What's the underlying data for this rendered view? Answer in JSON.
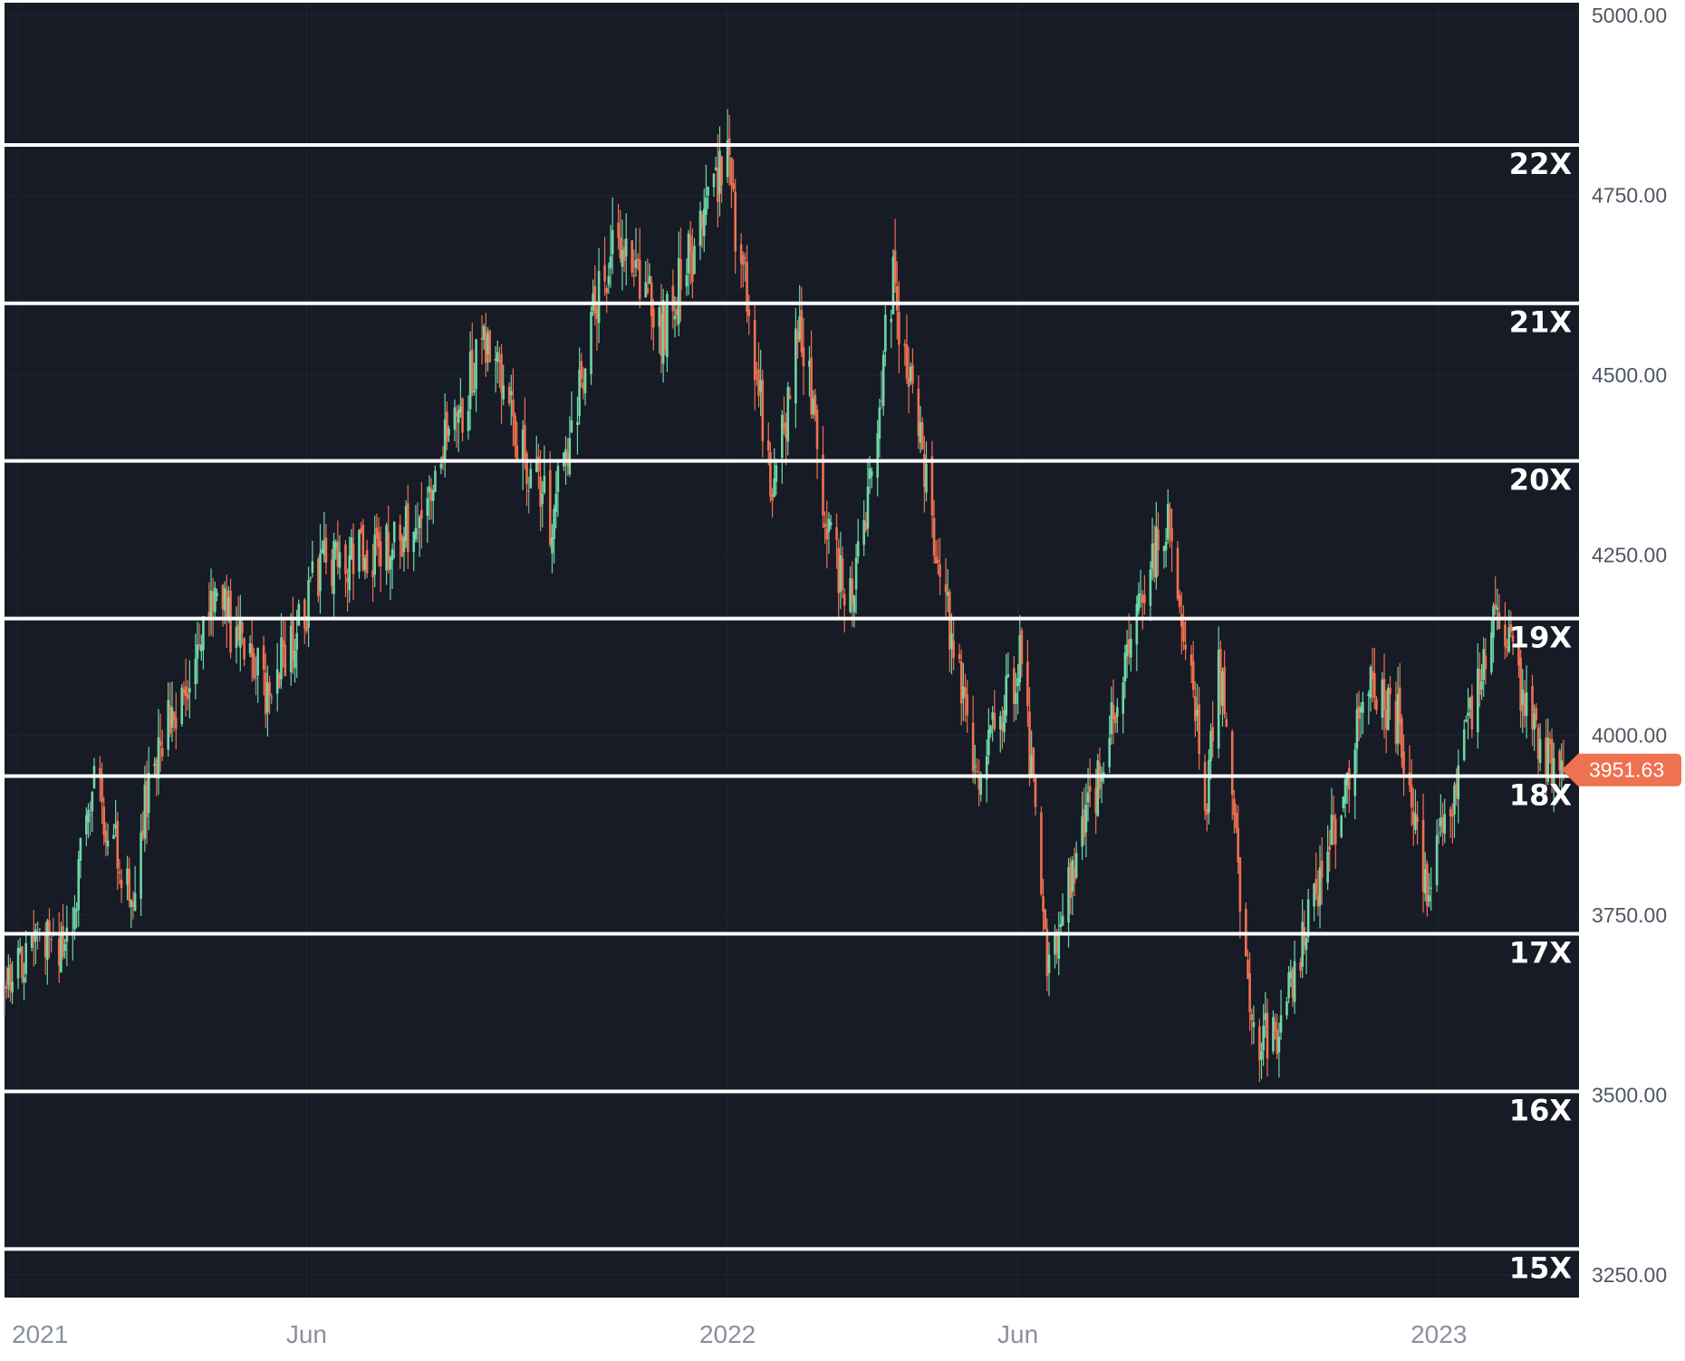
{
  "colors": {
    "background": "#161b26",
    "grid": "#1f2532",
    "up": "#6fd6a6",
    "down": "#ee7150",
    "neutral": "#8f959e",
    "multiple_line": "#ffffff",
    "axis_text": "#4e5563",
    "price_tag": "#ee7150"
  },
  "chart_data": {
    "type": "candlestick",
    "title": "",
    "xlabel": "",
    "ylabel": "",
    "ylim": [
      3200,
      5020
    ],
    "xlim": [
      "2020-12-28",
      "2023-03-15"
    ],
    "grid": true,
    "y_ticks": [
      "5000.00",
      "4750.00",
      "4500.00",
      "4250.00",
      "4000.00",
      "3750.00",
      "3500.00",
      "3250.00"
    ],
    "x_ticks": [
      {
        "label": "2021",
        "date": "2021-01-04"
      },
      {
        "label": "Jun",
        "date": "2021-06-01"
      },
      {
        "label": "2022",
        "date": "2022-01-03"
      },
      {
        "label": "Jun",
        "date": "2022-06-01"
      },
      {
        "label": "2023",
        "date": "2023-01-03"
      }
    ],
    "last_price": {
      "value": 3951.63,
      "label": "3951.63"
    },
    "pe_multiples": [
      {
        "label": "22X",
        "value": 4820
      },
      {
        "label": "21X",
        "value": 4600
      },
      {
        "label": "20X",
        "value": 4381
      },
      {
        "label": "19X",
        "value": 4162
      },
      {
        "label": "18X",
        "value": 3943
      },
      {
        "label": "17X",
        "value": 3724
      },
      {
        "label": "16X",
        "value": 3505
      },
      {
        "label": "15X",
        "value": 3286
      }
    ],
    "price_path": [
      {
        "date": "2020-12-28",
        "close": 3640
      },
      {
        "date": "2021-01-08",
        "close": 3700
      },
      {
        "date": "2021-01-29",
        "close": 3714
      },
      {
        "date": "2021-02-12",
        "close": 3934
      },
      {
        "date": "2021-03-04",
        "close": 3768
      },
      {
        "date": "2021-03-12",
        "close": 3943
      },
      {
        "date": "2021-04-16",
        "close": 4185
      },
      {
        "date": "2021-05-12",
        "close": 4063
      },
      {
        "date": "2021-06-11",
        "close": 4247
      },
      {
        "date": "2021-07-19",
        "close": 4258
      },
      {
        "date": "2021-08-27",
        "close": 4509
      },
      {
        "date": "2021-09-02",
        "close": 4537
      },
      {
        "date": "2021-10-04",
        "close": 4300
      },
      {
        "date": "2021-11-05",
        "close": 4697
      },
      {
        "date": "2021-11-30",
        "close": 4567
      },
      {
        "date": "2022-01-03",
        "close": 4796
      },
      {
        "date": "2022-01-27",
        "close": 4326
      },
      {
        "date": "2022-02-09",
        "close": 4587
      },
      {
        "date": "2022-02-24",
        "close": 4288
      },
      {
        "date": "2022-03-08",
        "close": 4170
      },
      {
        "date": "2022-03-29",
        "close": 4631
      },
      {
        "date": "2022-04-26",
        "close": 4175
      },
      {
        "date": "2022-05-12",
        "close": 3930
      },
      {
        "date": "2022-05-26",
        "close": 4057
      },
      {
        "date": "2022-06-03",
        "close": 4108
      },
      {
        "date": "2022-06-16",
        "close": 3666
      },
      {
        "date": "2022-07-08",
        "close": 3899
      },
      {
        "date": "2022-08-16",
        "close": 4305
      },
      {
        "date": "2022-09-06",
        "close": 3908
      },
      {
        "date": "2022-09-12",
        "close": 4110
      },
      {
        "date": "2022-09-30",
        "close": 3585
      },
      {
        "date": "2022-10-12",
        "close": 3577
      },
      {
        "date": "2022-11-30",
        "close": 4080
      },
      {
        "date": "2022-12-13",
        "close": 4019
      },
      {
        "date": "2022-12-28",
        "close": 3783
      },
      {
        "date": "2023-02-02",
        "close": 4179
      },
      {
        "date": "2023-02-24",
        "close": 3970
      },
      {
        "date": "2023-03-08",
        "close": 3951.63
      }
    ]
  }
}
